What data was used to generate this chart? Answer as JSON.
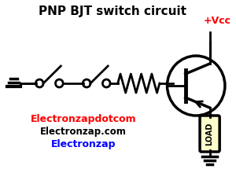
{
  "title": "PNP BJT switch circuit",
  "title_color": "#000000",
  "title_fontsize": 11,
  "bg_color": "#ffffff",
  "vcc_label": "+Vcc",
  "vcc_color": "#ff0000",
  "load_label": "LOAD",
  "load_bg": "#ffffcc",
  "load_color": "#000000",
  "text1": "Electronzapdotcom",
  "text1_color": "#ff0000",
  "text2": "Electronzap.com",
  "text2_color": "#000000",
  "text3": "Electronzap",
  "text3_color": "#0000ff",
  "line_color": "#000000",
  "line_width": 2.0
}
